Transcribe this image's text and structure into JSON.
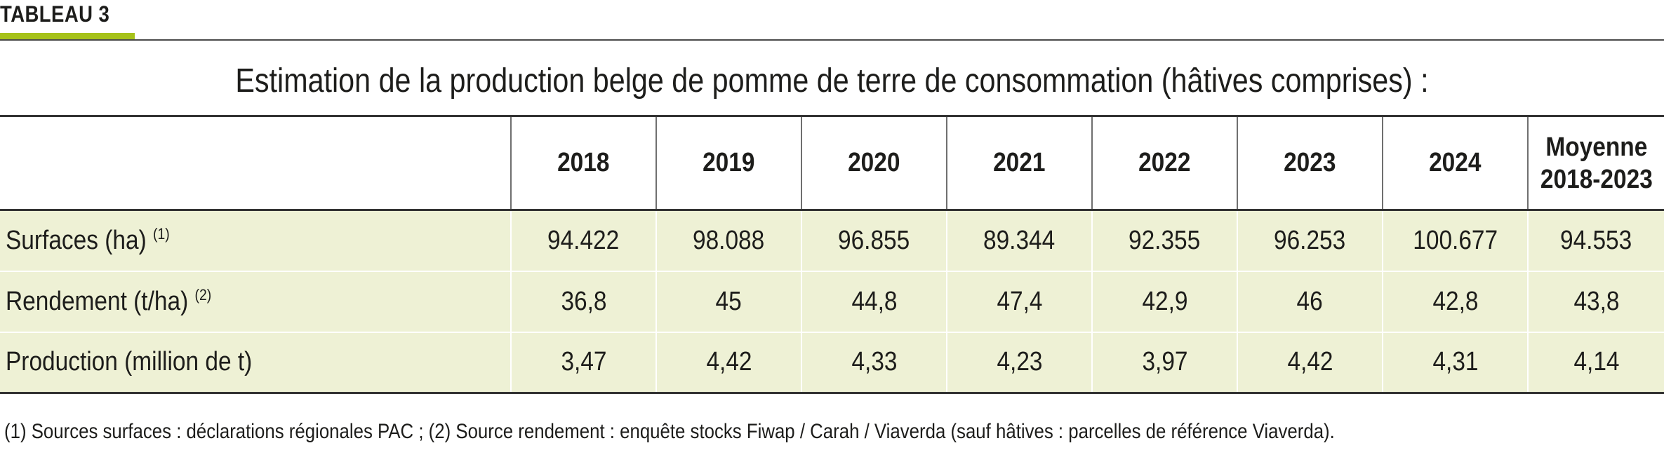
{
  "tag": "TABLEAU 3",
  "title": "Estimation de la production belge de pomme de terre de consommation (hâtives comprises) :",
  "header": {
    "blank": "",
    "years": [
      "2018",
      "2019",
      "2020",
      "2021",
      "2022",
      "2023",
      "2024"
    ],
    "avg_line1": "Moyenne",
    "avg_line2": "2018-2023"
  },
  "rows": [
    {
      "label": "Surfaces (ha)",
      "note": "(1)",
      "values": [
        "94.422",
        "98.088",
        "96.855",
        "89.344",
        "92.355",
        "96.253",
        "100.677",
        "94.553"
      ]
    },
    {
      "label": "Rendement (t/ha)",
      "note": "(2)",
      "values": [
        "36,8",
        "45",
        "44,8",
        "47,4",
        "42,9",
        "46",
        "42,8",
        "43,8"
      ]
    },
    {
      "label": "Production (million de t)",
      "note": "",
      "values": [
        "3,47",
        "4,42",
        "4,33",
        "4,23",
        "3,97",
        "4,42",
        "4,31",
        "4,14"
      ]
    }
  ],
  "footnote": "(1) Sources surfaces : déclarations régionales PAC ; (2) Source rendement : enquête stocks Fiwap / Carah / Viaverda (sauf hâtives : parcelles de référence Viaverda).",
  "colors": {
    "accent": "#a6c21a",
    "row_bg": "#eef1d5",
    "text": "#1d1d1b"
  }
}
